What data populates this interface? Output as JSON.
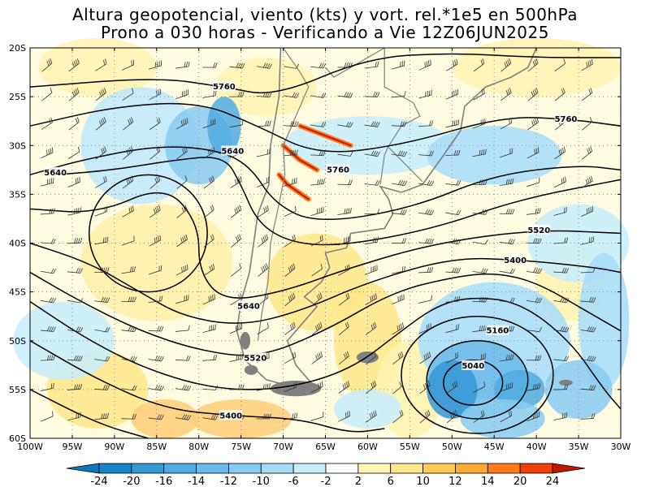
{
  "title": {
    "line1": "Altura geopotencial, viento (kts) y vort. rel.*1e5 en 500hPa",
    "line2": "Prono a 030 horas - Verificando a Vie 12Z06JUN2025"
  },
  "lat_labels": [
    "20S",
    "25S",
    "30S",
    "35S",
    "40S",
    "45S",
    "50S",
    "55S",
    "60S"
  ],
  "lon_labels": [
    "100W",
    "95W",
    "90W",
    "85W",
    "80W",
    "75W",
    "70W",
    "65W",
    "60W",
    "55W",
    "50W",
    "45W",
    "40W",
    "35W",
    "30W"
  ],
  "contour_labels": [
    {
      "text": "5760",
      "lon": -77,
      "lat": -24.0
    },
    {
      "text": "5640",
      "lon": -76,
      "lat": -30.6
    },
    {
      "text": "5640",
      "lon": -97,
      "lat": -32.8
    },
    {
      "text": "5760",
      "lon": -63.5,
      "lat": -32.5
    },
    {
      "text": "5760",
      "lon": -36.5,
      "lat": -27.3
    },
    {
      "text": "5520",
      "lon": -39.7,
      "lat": -38.7
    },
    {
      "text": "5400",
      "lon": -42.5,
      "lat": -41.8
    },
    {
      "text": "5640",
      "lon": -74.1,
      "lat": -46.5
    },
    {
      "text": "5160",
      "lon": -44.6,
      "lat": -49.0
    },
    {
      "text": "5520",
      "lon": -73.3,
      "lat": -51.8
    },
    {
      "text": "5040",
      "lon": -47.5,
      "lat": -52.6
    },
    {
      "text": "5400",
      "lon": -76.2,
      "lat": -57.7
    }
  ],
  "colorbar": {
    "labels": [
      "-24",
      "-20",
      "-16",
      "-14",
      "-12",
      "-10",
      "-6",
      "-2",
      "2",
      "6",
      "10",
      "12",
      "14",
      "20",
      "24"
    ],
    "colors": [
      "#1a83c7",
      "#3597d6",
      "#50aae2",
      "#6cbaeb",
      "#88cbf2",
      "#a6dcf8",
      "#c8edfb",
      "#ffffff",
      "#fff6b4",
      "#ffe68a",
      "#ffcc55",
      "#ffaa30",
      "#ff7a18",
      "#f0400a"
    ],
    "min_color": "#1077bb",
    "max_color": "#c01800"
  },
  "colors": {
    "coast": "#7f7f7f",
    "contour": "#000000",
    "grid": "#888888"
  }
}
